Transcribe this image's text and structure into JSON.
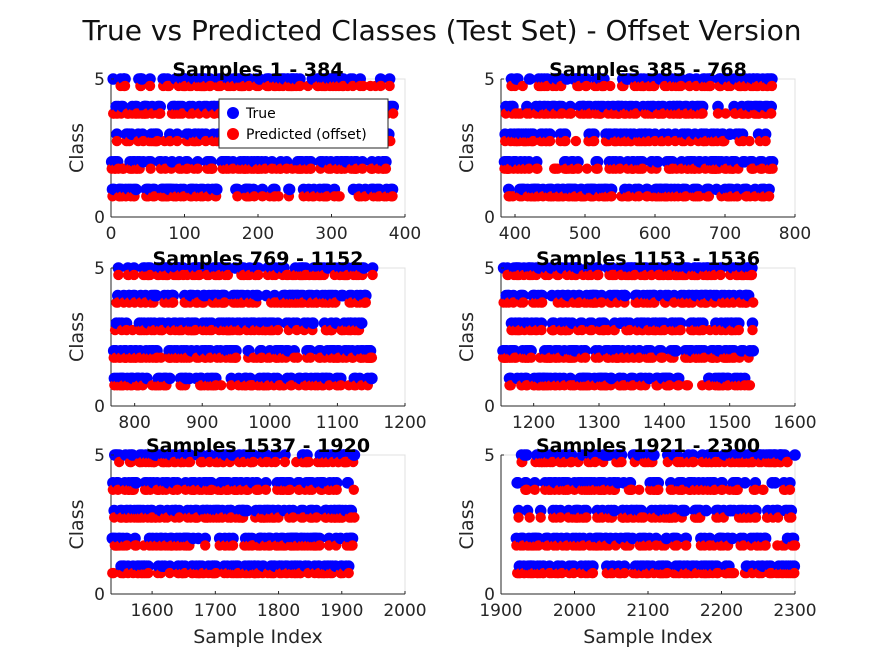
{
  "figure": {
    "title": "True vs Predicted Classes (Test Set) - Offset Version"
  },
  "colors": {
    "true": "#0000ff",
    "predicted": "#ff0000"
  },
  "legend": {
    "placement": "top-right (first panel)",
    "entries": [
      "True",
      "Predicted (offset)"
    ]
  },
  "chart_data": [
    {
      "type": "scatter",
      "title": "Samples 1 - 384",
      "xlabel": "",
      "ylabel": "Class",
      "xlim": [
        0,
        400
      ],
      "ylim": [
        0,
        5
      ],
      "xticks": [
        0,
        100,
        200,
        300,
        400
      ],
      "yticks": [
        0,
        5
      ],
      "grid": false,
      "range": [
        1,
        384
      ],
      "seed": 11,
      "series": [
        {
          "name": "True",
          "marker": "circle"
        },
        {
          "name": "Predicted (offset)",
          "marker": "circle",
          "offset": -0.25
        }
      ]
    },
    {
      "type": "scatter",
      "title": "Samples 385 - 768",
      "xlabel": "",
      "ylabel": "Class",
      "xlim": [
        380,
        800
      ],
      "ylim": [
        0,
        5
      ],
      "xticks": [
        400,
        500,
        600,
        700,
        800
      ],
      "yticks": [
        0,
        5
      ],
      "grid": false,
      "range": [
        385,
        768
      ],
      "seed": 23,
      "series": [
        {
          "name": "True",
          "marker": "circle"
        },
        {
          "name": "Predicted (offset)",
          "marker": "circle",
          "offset": -0.25
        }
      ]
    },
    {
      "type": "scatter",
      "title": "Samples 769 - 1152",
      "xlabel": "",
      "ylabel": "Class",
      "xlim": [
        765,
        1200
      ],
      "ylim": [
        0,
        5
      ],
      "xticks": [
        800,
        900,
        1000,
        1100,
        1200
      ],
      "yticks": [
        0,
        5
      ],
      "grid": false,
      "range": [
        769,
        1152
      ],
      "seed": 37,
      "series": [
        {
          "name": "True",
          "marker": "circle"
        },
        {
          "name": "Predicted (offset)",
          "marker": "circle",
          "offset": -0.25
        }
      ]
    },
    {
      "type": "scatter",
      "title": "Samples 1153 - 1536",
      "xlabel": "",
      "ylabel": "Class",
      "xlim": [
        1150,
        1600
      ],
      "ylim": [
        0,
        5
      ],
      "xticks": [
        1200,
        1300,
        1400,
        1500,
        1600
      ],
      "yticks": [
        0,
        5
      ],
      "grid": false,
      "range": [
        1153,
        1536
      ],
      "seed": 41,
      "series": [
        {
          "name": "True",
          "marker": "circle"
        },
        {
          "name": "Predicted (offset)",
          "marker": "circle",
          "offset": -0.25
        }
      ]
    },
    {
      "type": "scatter",
      "title": "Samples 1537 - 1920",
      "xlabel": "Sample Index",
      "ylabel": "Class",
      "xlim": [
        1535,
        2000
      ],
      "ylim": [
        0,
        5
      ],
      "xticks": [
        1600,
        1700,
        1800,
        1900,
        2000
      ],
      "yticks": [
        0,
        5
      ],
      "grid": false,
      "range": [
        1537,
        1920
      ],
      "seed": 53,
      "series": [
        {
          "name": "True",
          "marker": "circle"
        },
        {
          "name": "Predicted (offset)",
          "marker": "circle",
          "offset": -0.25
        }
      ]
    },
    {
      "type": "scatter",
      "title": "Samples 1921 - 2300",
      "xlabel": "Sample Index",
      "ylabel": "Class",
      "xlim": [
        1900,
        2300
      ],
      "ylim": [
        0,
        5
      ],
      "xticks": [
        1900,
        2000,
        2100,
        2200,
        2300
      ],
      "yticks": [
        0,
        5
      ],
      "grid": false,
      "range": [
        1921,
        2300
      ],
      "seed": 67,
      "series": [
        {
          "name": "True",
          "marker": "circle"
        },
        {
          "name": "Predicted (offset)",
          "marker": "circle",
          "offset": -0.25
        }
      ]
    }
  ]
}
